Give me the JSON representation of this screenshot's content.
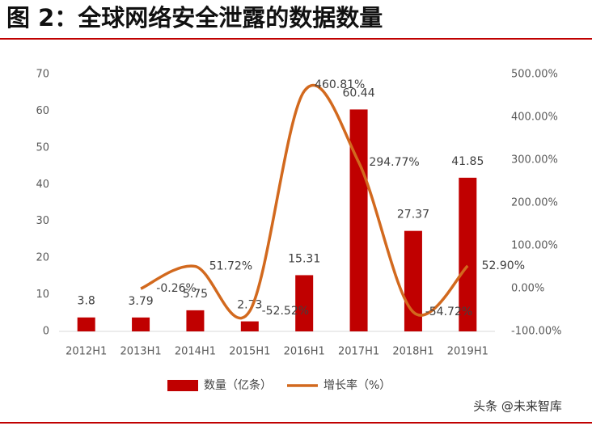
{
  "chart_data": {
    "type": "bar",
    "title": "图 2：全球网络安全泄露的数据数量",
    "categories": [
      "2012H1",
      "2013H1",
      "2014H1",
      "2015H1",
      "2016H1",
      "2017H1",
      "2018H1",
      "2019H1"
    ],
    "series": [
      {
        "name": "数量（亿条）",
        "type": "bar",
        "color": "#c00000",
        "values": [
          3.8,
          3.79,
          5.75,
          2.73,
          15.31,
          60.44,
          27.37,
          41.85
        ]
      },
      {
        "name": "增长率（%）",
        "type": "line",
        "axis": "y2",
        "color": "#d2691e",
        "values": [
          null,
          -0.26,
          51.72,
          -52.52,
          460.81,
          294.77,
          -54.72,
          52.9
        ],
        "value_labels": [
          null,
          "-0.26%",
          "51.72%",
          "-52.52%",
          "460.81%",
          "294.77%",
          "-54.72%",
          "52.90%"
        ]
      }
    ],
    "ylim": [
      0,
      70
    ],
    "yticks": [
      0,
      10,
      20,
      30,
      40,
      50,
      60,
      70
    ],
    "y2lim": [
      -100,
      500
    ],
    "y2ticks": [
      {
        "value": -100,
        "label": "-100.00%"
      },
      {
        "value": 0,
        "label": "0.00%"
      },
      {
        "value": 100,
        "label": "100.00%"
      },
      {
        "value": 200,
        "label": "200.00%"
      },
      {
        "value": 300,
        "label": "300.00%"
      },
      {
        "value": 400,
        "label": "400.00%"
      },
      {
        "value": 500,
        "label": "500.00%"
      }
    ],
    "legend": "bottom",
    "watermark": "头条 @未来智库"
  }
}
